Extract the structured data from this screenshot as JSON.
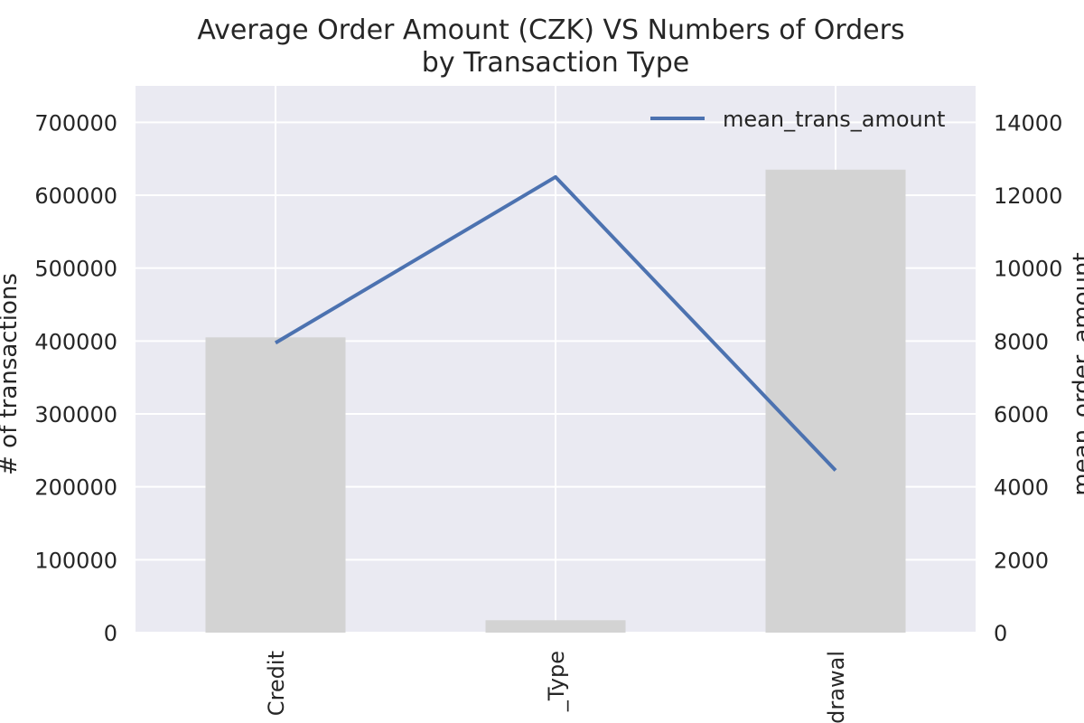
{
  "chart_data": {
    "type": "bar+line",
    "title": "Average Order Amount (CZK) VS Numbers of Orders\nby Transaction Type",
    "categories": [
      "Credit",
      "_Type",
      "drawal"
    ],
    "left_axis": {
      "label": "# of transactions",
      "ylim": [
        0,
        750000
      ],
      "ticks": [
        0,
        100000,
        200000,
        300000,
        400000,
        500000,
        600000,
        700000
      ]
    },
    "right_axis": {
      "label": "mean_order_amount",
      "ylim": [
        0,
        15000
      ],
      "ticks": [
        0,
        2000,
        4000,
        6000,
        8000,
        10000,
        12000,
        14000
      ]
    },
    "series": [
      {
        "kind": "bar",
        "axis": "left",
        "values": [
          405000,
          17000,
          635000
        ],
        "color": "#d3d3d3"
      },
      {
        "kind": "line",
        "axis": "right",
        "name": "mean_trans_amount",
        "values": [
          7950,
          12500,
          4450
        ],
        "color": "#4c72b0"
      }
    ],
    "legend": {
      "position": "top-right",
      "entries": [
        "mean_trans_amount"
      ]
    },
    "grid": true,
    "background": "#eaeaf2",
    "grid_color": "#ffffff"
  }
}
